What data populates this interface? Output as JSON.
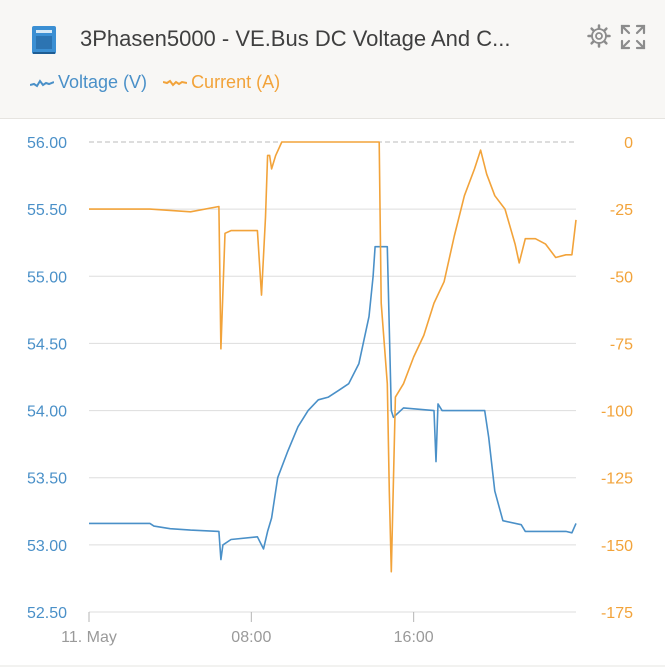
{
  "header": {
    "title": "3Phasen5000 - VE.Bus DC Voltage And C...",
    "device_icon": "inverter-icon",
    "settings_icon": "gear-icon",
    "expand_icon": "expand-icon"
  },
  "colors": {
    "voltage": "#4a90c8",
    "current": "#f2a33a",
    "grid": "#dddddd",
    "zero_line": "#bbbbbb"
  },
  "chart_data": {
    "type": "line",
    "x_unit": "hours",
    "x_ticks": [
      {
        "value": 0,
        "label": "11. May"
      },
      {
        "value": 8,
        "label": "08:00"
      },
      {
        "value": 16,
        "label": "16:00"
      }
    ],
    "xlim": [
      0,
      24
    ],
    "y_left": {
      "ticks": [
        "56.00",
        "55.50",
        "55.00",
        "54.50",
        "54.00",
        "53.50",
        "53.00",
        "52.50"
      ],
      "ylim": [
        52.5,
        56.0
      ]
    },
    "y_right": {
      "ticks": [
        "0",
        "-25",
        "-50",
        "-75",
        "-100",
        "-125",
        "-150",
        "-175"
      ],
      "ylim": [
        -175,
        0
      ]
    },
    "grid": true,
    "legend_position": "top-left",
    "series": [
      {
        "name": "Voltage (V)",
        "axis": "left",
        "points": [
          [
            0,
            53.16
          ],
          [
            3.0,
            53.16
          ],
          [
            3.2,
            53.14
          ],
          [
            4.0,
            53.12
          ],
          [
            5.0,
            53.11
          ],
          [
            6.4,
            53.1
          ],
          [
            6.5,
            52.89
          ],
          [
            6.6,
            53.0
          ],
          [
            7.0,
            53.04
          ],
          [
            8.3,
            53.06
          ],
          [
            8.6,
            52.97
          ],
          [
            8.8,
            53.1
          ],
          [
            9.0,
            53.2
          ],
          [
            9.3,
            53.5
          ],
          [
            9.8,
            53.7
          ],
          [
            10.3,
            53.88
          ],
          [
            10.8,
            54.0
          ],
          [
            11.3,
            54.08
          ],
          [
            11.8,
            54.1
          ],
          [
            12.3,
            54.15
          ],
          [
            12.8,
            54.2
          ],
          [
            13.3,
            54.35
          ],
          [
            13.8,
            54.7
          ],
          [
            14.0,
            55.0
          ],
          [
            14.1,
            55.22
          ],
          [
            14.7,
            55.22
          ],
          [
            14.9,
            54.0
          ],
          [
            15.0,
            53.95
          ],
          [
            15.5,
            54.02
          ],
          [
            17.0,
            54.0
          ],
          [
            17.1,
            53.62
          ],
          [
            17.2,
            54.05
          ],
          [
            17.4,
            54.0
          ],
          [
            19.5,
            54.0
          ],
          [
            19.7,
            53.8
          ],
          [
            20.0,
            53.4
          ],
          [
            20.4,
            53.18
          ],
          [
            21.3,
            53.15
          ],
          [
            21.5,
            53.1
          ],
          [
            23.5,
            53.1
          ],
          [
            23.8,
            53.09
          ],
          [
            24.0,
            53.16
          ]
        ]
      },
      {
        "name": "Current (A)",
        "axis": "right",
        "points": [
          [
            0,
            -25
          ],
          [
            3.0,
            -25
          ],
          [
            5.0,
            -26
          ],
          [
            6.4,
            -24
          ],
          [
            6.5,
            -77
          ],
          [
            6.7,
            -34
          ],
          [
            7.0,
            -33
          ],
          [
            8.3,
            -33
          ],
          [
            8.5,
            -57
          ],
          [
            8.7,
            -28
          ],
          [
            8.8,
            -5
          ],
          [
            8.9,
            -5
          ],
          [
            9.0,
            -10
          ],
          [
            9.2,
            -5
          ],
          [
            9.5,
            0
          ],
          [
            14.3,
            0
          ],
          [
            14.4,
            -60
          ],
          [
            14.7,
            -90
          ],
          [
            14.8,
            -130
          ],
          [
            14.9,
            -160
          ],
          [
            15.1,
            -95
          ],
          [
            15.5,
            -90
          ],
          [
            16.0,
            -80
          ],
          [
            16.5,
            -72
          ],
          [
            17.0,
            -60
          ],
          [
            17.5,
            -52
          ],
          [
            18.0,
            -35
          ],
          [
            18.5,
            -20
          ],
          [
            19.0,
            -10
          ],
          [
            19.3,
            -3
          ],
          [
            19.6,
            -12
          ],
          [
            20.0,
            -20
          ],
          [
            20.5,
            -25
          ],
          [
            21.0,
            -38
          ],
          [
            21.2,
            -45
          ],
          [
            21.5,
            -36
          ],
          [
            22.0,
            -36
          ],
          [
            22.5,
            -38
          ],
          [
            23.0,
            -43
          ],
          [
            23.5,
            -42
          ],
          [
            23.8,
            -42
          ],
          [
            24.0,
            -29
          ]
        ]
      }
    ]
  }
}
